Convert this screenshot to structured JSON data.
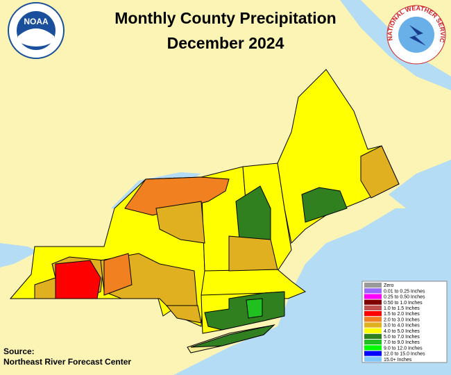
{
  "title": "Monthly County Precipitation",
  "subtitle": "December 2024",
  "logos": {
    "noaa": "NOAA",
    "nws": "NATIONAL WEATHER SERVICE"
  },
  "legend": [
    {
      "label": "Zero",
      "color": "#999999"
    },
    {
      "label": "0.01 to 0.25 Inches",
      "color": "#9966ff"
    },
    {
      "label": "0.25 to 0.50 Inches",
      "color": "#ff00ff"
    },
    {
      "label": "0.50 to 1.0 Inches",
      "color": "#800000"
    },
    {
      "label": "1.0 to 1.5 Inches",
      "color": "#c05050"
    },
    {
      "label": "1.5 to 2.0 Inches",
      "color": "#ff0000"
    },
    {
      "label": "2.0 to 3.0 Inches",
      "color": "#f08020"
    },
    {
      "label": "3.0 to 4.0 Inches",
      "color": "#e0b020"
    },
    {
      "label": "4.0 to 5.0 Inches",
      "color": "#ffff00"
    },
    {
      "label": "5.0 to 7.0 Inches",
      "color": "#308020"
    },
    {
      "label": "7.0 to 9.0 Inches",
      "color": "#20c020"
    },
    {
      "label": "9.0 to 12.0 Inches",
      "color": "#00ff00"
    },
    {
      "label": "12.0 to 15.0 Inches",
      "color": "#0000ff"
    },
    {
      "label": "15.0+ Inches",
      "color": "#80c8ff"
    }
  ],
  "source": {
    "label": "Source:",
    "text": "Northeast River Forecast Center"
  }
}
